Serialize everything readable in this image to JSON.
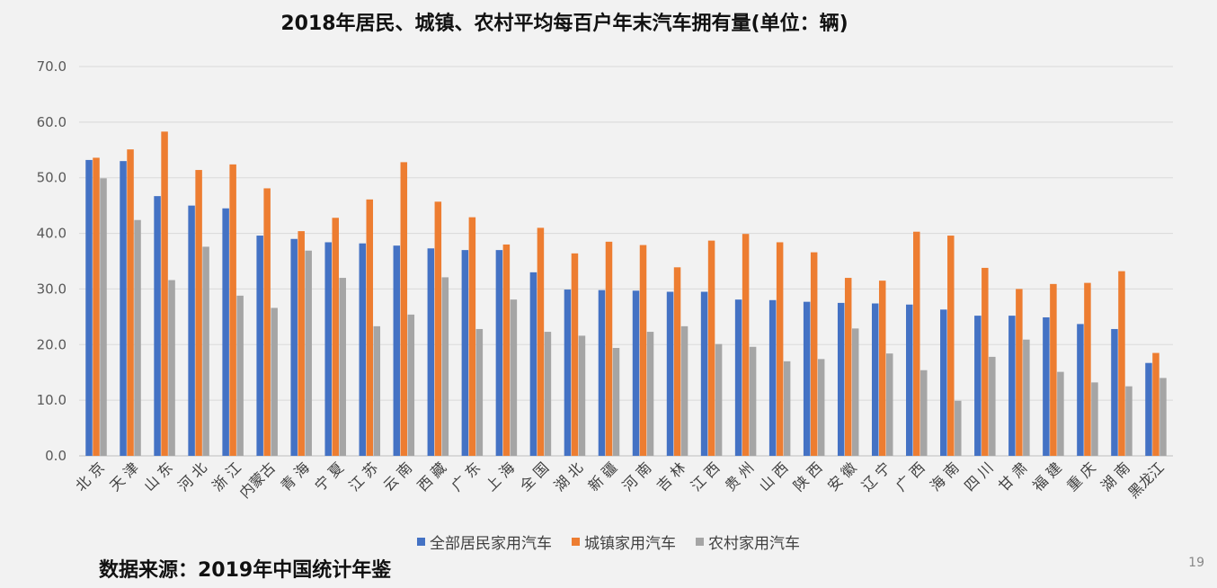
{
  "title": "2018年居民、城镇、农村平均每百户年末汽车拥有量(单位：辆)",
  "source": "数据来源：2019年中国统计年鉴",
  "page_number": "19",
  "colors": {
    "all": "#4472c4",
    "urban": "#ed7d31",
    "rural": "#a5a5a5",
    "grid": "#d9d9d9"
  },
  "chart_data": {
    "type": "bar",
    "title": "2018年居民、城镇、农村平均每百户年末汽车拥有量(单位：辆)",
    "categories": [
      "北京",
      "天津",
      "山东",
      "河北",
      "浙江",
      "内蒙古",
      "青海",
      "宁夏",
      "江苏",
      "云南",
      "西藏",
      "广东",
      "上海",
      "全国",
      "湖北",
      "新疆",
      "河南",
      "吉林",
      "江西",
      "贵州",
      "山西",
      "陕西",
      "安徽",
      "辽宁",
      "广西",
      "海南",
      "四川",
      "甘肃",
      "福建",
      "重庆",
      "湖南",
      "黑龙江"
    ],
    "category_labels": [
      "北 京",
      "天 津",
      "山 东",
      "河 北",
      "浙 江",
      "内蒙古",
      "青 海",
      "宁 夏",
      "江 苏",
      "云 南",
      "西 藏",
      "广 东",
      "上 海",
      "全 国",
      "湖 北",
      "新 疆",
      "河 南",
      "吉 林",
      "江 西",
      "贵 州",
      "山 西",
      "陕 西",
      "安 徽",
      "辽 宁",
      "广 西",
      "海 南",
      "四 川",
      "甘 肃",
      "福 建",
      "重 庆",
      "湖 南",
      "黑龙江"
    ],
    "series": [
      {
        "name": "全部居民家用汽车",
        "values": [
          53.2,
          53.0,
          46.7,
          45.0,
          44.5,
          39.6,
          39.0,
          38.4,
          38.2,
          37.8,
          37.3,
          37.0,
          37.0,
          33.0,
          29.9,
          29.8,
          29.7,
          29.5,
          29.5,
          28.1,
          28.0,
          27.7,
          27.5,
          27.4,
          27.2,
          26.3,
          25.2,
          25.2,
          24.9,
          23.7,
          22.8,
          16.7
        ]
      },
      {
        "name": "城镇家用汽车",
        "values": [
          53.6,
          55.1,
          58.3,
          51.4,
          52.4,
          48.1,
          40.4,
          42.8,
          46.1,
          52.8,
          45.7,
          42.9,
          38.0,
          41.0,
          36.4,
          38.5,
          37.9,
          33.9,
          38.7,
          39.9,
          38.4,
          36.6,
          32.0,
          31.5,
          40.3,
          39.6,
          33.8,
          30.0,
          30.9,
          31.1,
          33.2,
          18.5
        ]
      },
      {
        "name": "农村家用汽车",
        "values": [
          49.9,
          42.4,
          31.6,
          37.6,
          28.8,
          26.6,
          36.9,
          32.0,
          23.3,
          25.4,
          32.1,
          22.8,
          28.1,
          22.3,
          21.6,
          19.4,
          22.3,
          23.3,
          20.1,
          19.6,
          17.0,
          17.4,
          22.9,
          18.4,
          15.4,
          9.9,
          17.8,
          20.9,
          15.1,
          13.2,
          12.5,
          14.0
        ]
      }
    ],
    "ylim": [
      0,
      70
    ],
    "yticks": [
      "0.0",
      "10.0",
      "20.0",
      "30.0",
      "40.0",
      "50.0",
      "60.0",
      "70.0"
    ],
    "grid": true,
    "legend_position": "bottom"
  }
}
